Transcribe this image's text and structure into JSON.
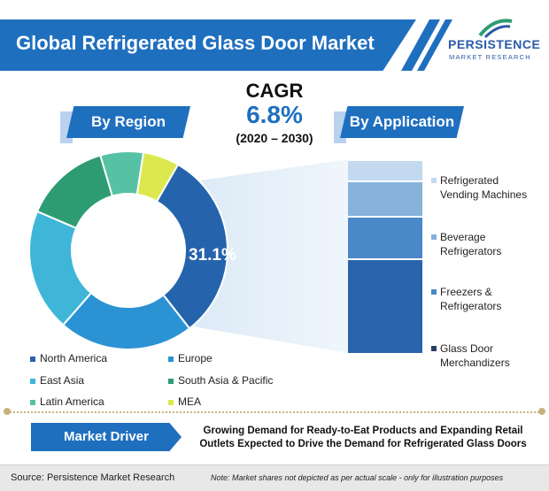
{
  "header": {
    "title": "Global Refrigerated Glass Door Market"
  },
  "logo": {
    "brand": "PERSISTENCE",
    "sub": "MARKET RESEARCH"
  },
  "cagr": {
    "label": "CAGR",
    "value": "6.8%",
    "years": "(2020 – 2030)"
  },
  "tags": {
    "region": "By Region",
    "application": "By Application"
  },
  "chart_data": [
    {
      "type": "pie",
      "variant": "donut",
      "title": "By Region",
      "categories": [
        "North America",
        "Europe",
        "East Asia",
        "South Asia & Pacific",
        "Latin America",
        "MEA"
      ],
      "values": [
        31.1,
        22.0,
        20.0,
        14.0,
        7.0,
        5.9
      ],
      "highlight_label": "31.1%",
      "colors": [
        "#2563ad",
        "#2b93d4",
        "#3fb6d8",
        "#2e9c72",
        "#57c2a3",
        "#dde84f"
      ],
      "legend_placement": "bottom"
    },
    {
      "type": "bar",
      "variant": "stacked-100",
      "title": "By Application",
      "categories": [
        "Glass Door Merchandizers",
        "Freezers & Refrigerators",
        "Beverage Refrigerators",
        "Refrigerated Vending Machines"
      ],
      "values": [
        49,
        22,
        18,
        11
      ],
      "colors": [
        "#2a64ad",
        "#4a88c8",
        "#86b2dc",
        "#c3d9ef"
      ],
      "legend_placement": "right"
    }
  ],
  "legend_region": [
    {
      "label": "North America",
      "color": "#2563ad"
    },
    {
      "label": "Europe",
      "color": "#2b93d4"
    },
    {
      "label": "East Asia",
      "color": "#3fb6d8"
    },
    {
      "label": "South Asia & Pacific",
      "color": "#2e9c72"
    },
    {
      "label": "Latin America",
      "color": "#57c2a3"
    },
    {
      "label": "MEA",
      "color": "#dde84f"
    }
  ],
  "legend_application": [
    {
      "line1": "Refrigerated",
      "line2": "Vending Machines",
      "color": "#c3d9ef"
    },
    {
      "line1": "Beverage",
      "line2": "Refrigerators",
      "color": "#86b2dc"
    },
    {
      "line1": "Freezers &",
      "line2": "Refrigerators",
      "color": "#4a88c8"
    },
    {
      "line1": "Glass Door",
      "line2": "Merchandizers",
      "color": "#2a3f5f"
    }
  ],
  "driver": {
    "label": "Market Driver",
    "line1": "Growing Demand for Ready-to-Eat Products and Expanding Retail",
    "line2": "Outlets Expected to Drive the Demand for Refrigerated Glass Doors"
  },
  "footer": {
    "source": "Source: Persistence Market Research",
    "note": "Note: Market shares not depicted as per actual scale - only for illustration purposes"
  }
}
